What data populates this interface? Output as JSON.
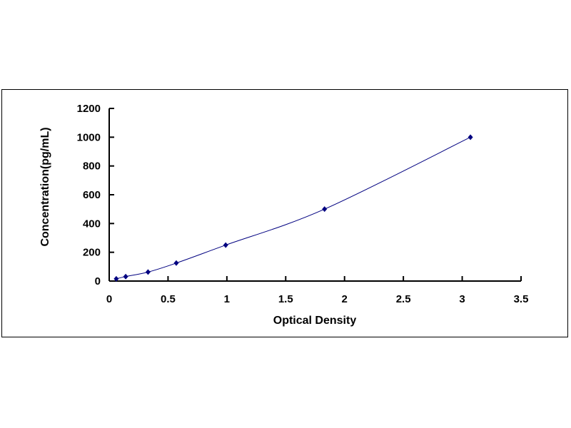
{
  "chart_data": {
    "type": "line",
    "title": "",
    "xlabel": "Optical Density",
    "ylabel": "Concentration(pg/mL)",
    "xlim": [
      0,
      3.5
    ],
    "ylim": [
      0,
      1200
    ],
    "xticks": [
      "0",
      "0.5",
      "1",
      "1.5",
      "2",
      "2.5",
      "3",
      "3.5"
    ],
    "yticks": [
      "0",
      "200",
      "400",
      "600",
      "800",
      "1000",
      "1200"
    ],
    "grid": false,
    "legend": "none",
    "series": [
      {
        "x": [
          0.06,
          0.14,
          0.33,
          0.57,
          0.99,
          1.83,
          3.07
        ],
        "y": [
          15.6,
          31.25,
          62.5,
          125,
          250,
          500,
          1000
        ],
        "color": "#000080",
        "marker": "diamond",
        "line": "smooth"
      }
    ]
  }
}
